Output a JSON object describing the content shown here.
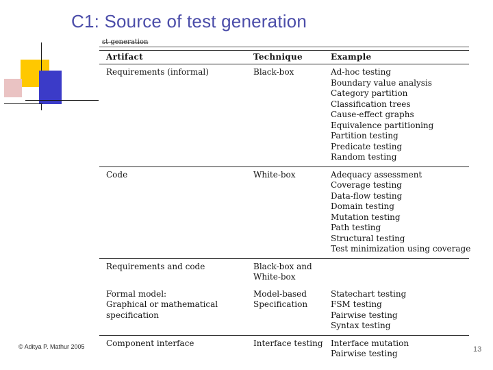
{
  "slide": {
    "title": "C1: Source of test generation",
    "cropped_fragment": "st generation",
    "footer": "© Aditya P. Mathur 2005",
    "page_number": "13"
  },
  "colors": {
    "title_blue": "#4b4da9",
    "accent_yellow": "#ffc800",
    "accent_blue": "#3b3bc8",
    "accent_pink": "#eac3c3"
  },
  "table": {
    "columns": [
      "Artifact",
      "Technique",
      "Example"
    ],
    "rows": [
      {
        "artifact": [
          "Requirements (informal)"
        ],
        "technique": [
          "Black-box"
        ],
        "example": [
          "Ad-hoc testing",
          "Boundary value analysis",
          "Category partition",
          "Classification trees",
          "Cause-effect graphs",
          "Equivalence partitioning",
          "Partition testing",
          "Predicate testing",
          "Random testing"
        ],
        "divider_after": true
      },
      {
        "artifact": [
          "Code"
        ],
        "technique": [
          "White-box"
        ],
        "example": [
          "Adequacy assessment",
          "Coverage testing",
          "Data-flow testing",
          "Domain testing",
          "Mutation testing",
          "Path testing",
          "Structural testing",
          "Test minimization using coverage"
        ],
        "divider_after": true
      },
      {
        "artifact": [
          "Requirements and code"
        ],
        "technique": [
          "Black-box and",
          "White-box"
        ],
        "example": [],
        "divider_after": false
      },
      {
        "artifact": [
          "Formal model:",
          "Graphical or mathematical",
          "specification"
        ],
        "technique": [
          "Model-based",
          "Specification"
        ],
        "example": [
          "Statechart testing",
          "FSM testing",
          "Pairwise testing",
          "Syntax testing"
        ],
        "divider_after": true
      },
      {
        "artifact": [
          "Component interface"
        ],
        "technique": [
          "Interface testing"
        ],
        "example": [
          "Interface mutation",
          "Pairwise testing"
        ],
        "divider_after": false
      }
    ]
  }
}
